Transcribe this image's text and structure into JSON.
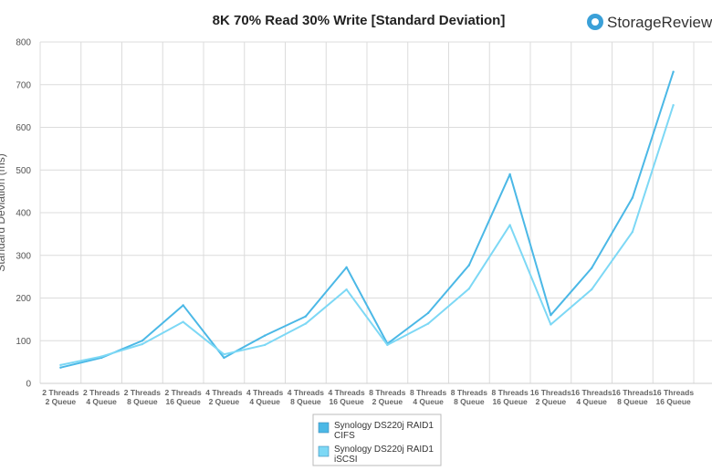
{
  "brand": {
    "name": "StorageReview",
    "icon": "storagereview-logo-icon",
    "icon_color": "#3aa0d8"
  },
  "chart_data": {
    "type": "line",
    "title": "8K 70% Read 30% Write [Standard Deviation]",
    "ylabel": "Standard Deviation (ms)",
    "xlabel": "",
    "ylim": [
      0,
      800
    ],
    "yticks": [
      0,
      100,
      200,
      300,
      400,
      500,
      600,
      700,
      800
    ],
    "grid": true,
    "legend_position": "bottom",
    "categories": [
      [
        "2 Threads",
        "2 Queue"
      ],
      [
        "2 Threads",
        "4 Queue"
      ],
      [
        "2 Threads",
        "8 Queue"
      ],
      [
        "2 Threads",
        "16 Queue"
      ],
      [
        "4 Threads",
        "2 Queue"
      ],
      [
        "4 Threads",
        "4 Queue"
      ],
      [
        "4 Threads",
        "8 Queue"
      ],
      [
        "4 Threads",
        "16 Queue"
      ],
      [
        "8 Threads",
        "2 Queue"
      ],
      [
        "8 Threads",
        "4 Queue"
      ],
      [
        "8 Threads",
        "8 Queue"
      ],
      [
        "8 Threads",
        "16 Queue"
      ],
      [
        "16 Threads",
        "2 Queue"
      ],
      [
        "16 Threads",
        "4 Queue"
      ],
      [
        "16 Threads",
        "8 Queue"
      ],
      [
        "16 Threads",
        "16 Queue"
      ]
    ],
    "series": [
      {
        "name": [
          "Synology DS220j RAID1",
          "CIFS"
        ],
        "color": "#4bb8e6",
        "values": [
          37,
          60,
          100,
          183,
          60,
          112,
          157,
          272,
          93,
          165,
          277,
          490,
          160,
          270,
          435,
          730
        ]
      },
      {
        "name": [
          "Synology DS220j RAID1",
          "iSCSI"
        ],
        "color": "#7dd8f5",
        "values": [
          43,
          63,
          92,
          144,
          68,
          90,
          140,
          220,
          90,
          140,
          222,
          371,
          138,
          220,
          355,
          652
        ]
      }
    ]
  }
}
